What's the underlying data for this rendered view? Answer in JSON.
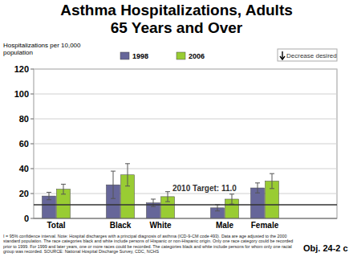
{
  "chart_data": {
    "type": "bar",
    "title": "Asthma Hospitalizations, Adults 65 Years and Over",
    "y_label": "Hospitalizations per 10,000 population",
    "categories": [
      "Total",
      "Black",
      "White",
      "Male",
      "Female"
    ],
    "series": [
      {
        "name": "1998",
        "color": "#666699",
        "values": [
          18,
          27,
          12.5,
          8.5,
          24.5
        ],
        "errors": [
          3,
          11,
          3,
          2.5,
          4
        ]
      },
      {
        "name": "2006",
        "color": "#99cc33",
        "values": [
          23.5,
          35,
          17.5,
          15.5,
          30
        ],
        "errors": [
          4,
          9,
          4,
          4,
          6
        ]
      }
    ],
    "ylim": [
      0,
      120
    ],
    "yticks": [
      0,
      20,
      40,
      60,
      80,
      100,
      120
    ],
    "grid": true,
    "legend": "top",
    "target": {
      "value": 11.0,
      "label": "2010 Target: 11.0"
    },
    "goal_note": "Decrease desired",
    "footnote": "I = 95% confidence interval. Note: Hospital discharges with a principal diagnosis of asthma (ICD-9-CM code 493). Data are age adjusted to the 2000 standard population. The race categories black and white include persons of Hispanic or non-Hispanic origin. Only one race category could be recorded prior to 1999. For 1999 and later years, one or more races could be recorded. The categories black and white include persons for whom only one racial group was recorded. SOURCE: National Hospital Discharge Survey, CDC, NCHS",
    "objective": "Obj. 24-2 c"
  }
}
